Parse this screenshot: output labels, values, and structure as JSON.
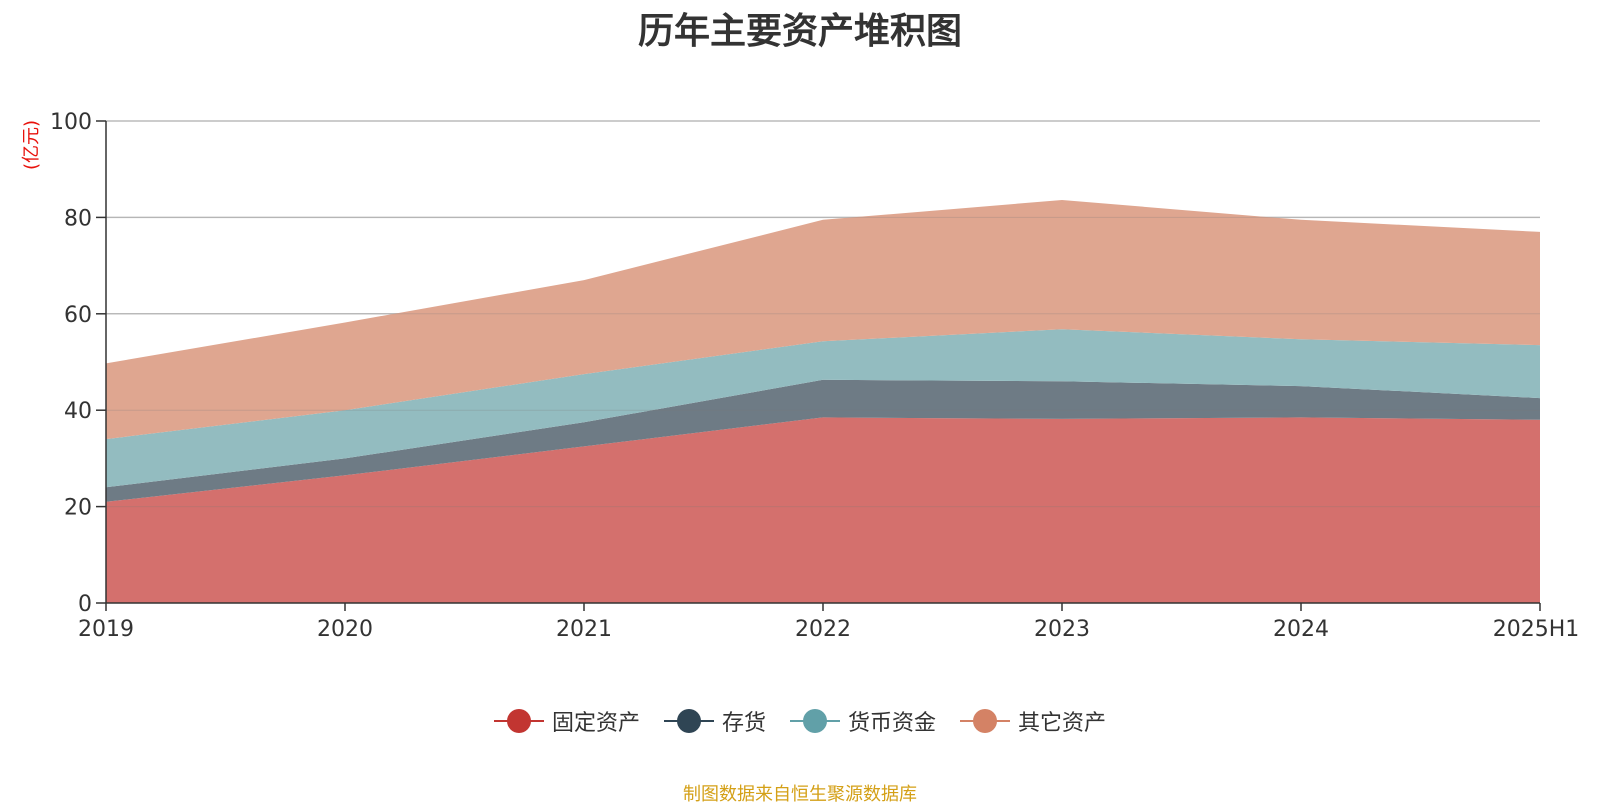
{
  "chart_data": {
    "type": "area",
    "stacked": true,
    "title": "历年主要资产堆积图",
    "unit_label": "(亿元)",
    "categories": [
      "2019",
      "2020",
      "2021",
      "2022",
      "2023",
      "2024",
      "2025H1"
    ],
    "ylim": [
      0,
      100
    ],
    "yticks": [
      "0",
      "20",
      "40",
      "60",
      "80",
      "100"
    ],
    "grid": true,
    "legend_position": "bottom",
    "series": [
      {
        "name": "固定资产",
        "color": "#c23531",
        "fill": "#d4706d",
        "values": [
          21.0,
          26.5,
          32.5,
          38.5,
          38.2,
          38.5,
          38.0
        ]
      },
      {
        "name": "存货",
        "color": "#2f4554",
        "fill": "#6e7b85",
        "values": [
          3.0,
          3.5,
          5.0,
          7.8,
          7.8,
          6.5,
          4.5
        ]
      },
      {
        "name": "货币资金",
        "color": "#61a0a8",
        "fill": "#93bcc0",
        "values": [
          10.0,
          10.0,
          10.0,
          8.0,
          10.8,
          9.7,
          11.0
        ]
      },
      {
        "name": "其它资产",
        "color": "#d48265",
        "fill": "#dfa690",
        "values": [
          15.7,
          18.2,
          19.5,
          25.2,
          26.8,
          24.8,
          23.5
        ]
      }
    ]
  },
  "source": "制图数据来自恒生聚源数据库"
}
